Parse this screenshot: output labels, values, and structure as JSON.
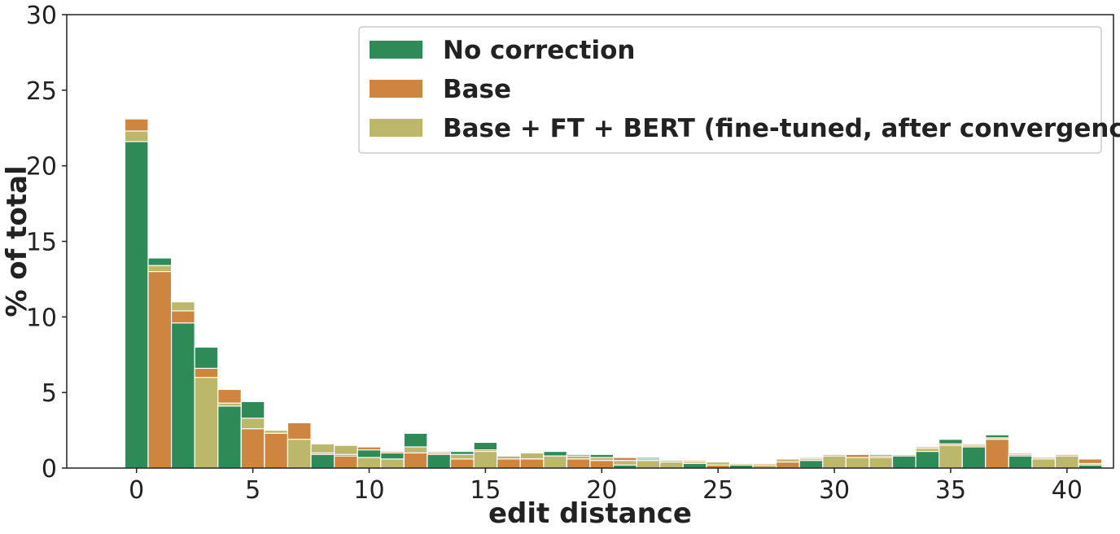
{
  "chart_data": {
    "type": "bar",
    "mode": "overlaid histogram",
    "xlabel": "edit distance",
    "ylabel": "% of total",
    "xlim": [
      -3,
      42
    ],
    "ylim": [
      0,
      30
    ],
    "xticks": [
      "0",
      "5",
      "10",
      "15",
      "20",
      "25",
      "30",
      "35",
      "40"
    ],
    "yticks": [
      "0",
      "5",
      "10",
      "15",
      "20",
      "25",
      "30"
    ],
    "grid": false,
    "legend_position": "top-right",
    "x": [
      0,
      1,
      2,
      3,
      4,
      5,
      6,
      7,
      8,
      9,
      10,
      11,
      12,
      13,
      14,
      15,
      16,
      17,
      18,
      19,
      20,
      21,
      22,
      23,
      24,
      25,
      26,
      27,
      28,
      29,
      30,
      31,
      32,
      33,
      34,
      35,
      36,
      37,
      38,
      39,
      40,
      41
    ],
    "series": [
      {
        "name": "No correction",
        "color": "#2e8b57",
        "values": [
          21.6,
          13.9,
          9.6,
          8.0,
          4.1,
          4.4,
          2.3,
          1.9,
          0.9,
          0.9,
          1.2,
          1.0,
          2.3,
          0.9,
          1.1,
          1.7,
          0.8,
          0.6,
          1.1,
          0.9,
          0.9,
          0.2,
          0.7,
          0.4,
          0.3,
          0.4,
          0.2,
          0.2,
          0.4,
          0.5,
          0.8,
          0.9,
          0.9,
          0.8,
          1.1,
          1.9,
          1.4,
          2.2,
          0.8,
          0.7,
          0.8,
          0.2
        ]
      },
      {
        "name": "Base",
        "color": "#cd853f",
        "values": [
          23.1,
          13.0,
          10.4,
          6.6,
          5.2,
          2.6,
          2.3,
          3.0,
          1.0,
          0.8,
          1.4,
          1.1,
          1.0,
          1.0,
          0.6,
          1.2,
          0.6,
          0.6,
          0.8,
          0.6,
          0.5,
          0.7,
          0.6,
          0.5,
          0.4,
          0.2,
          0.3,
          0.3,
          0.4,
          0.6,
          0.9,
          0.9,
          0.8,
          0.9,
          1.4,
          1.6,
          1.5,
          1.9,
          0.9,
          0.7,
          0.9,
          0.6
        ]
      },
      {
        "name": "Base + FT + BERT (fine-tuned, after convergence)",
        "color": "#bdb76b",
        "values": [
          22.3,
          13.4,
          11.0,
          6.0,
          4.3,
          3.3,
          2.5,
          1.9,
          1.6,
          1.5,
          0.7,
          0.6,
          1.4,
          1.1,
          0.9,
          1.1,
          0.8,
          1.0,
          0.8,
          0.8,
          0.7,
          0.5,
          0.5,
          0.4,
          0.5,
          0.4,
          0.3,
          0.2,
          0.6,
          0.7,
          0.8,
          0.7,
          0.7,
          0.9,
          1.3,
          1.5,
          1.6,
          2.0,
          1.0,
          0.6,
          0.8,
          0.3
        ]
      }
    ]
  }
}
